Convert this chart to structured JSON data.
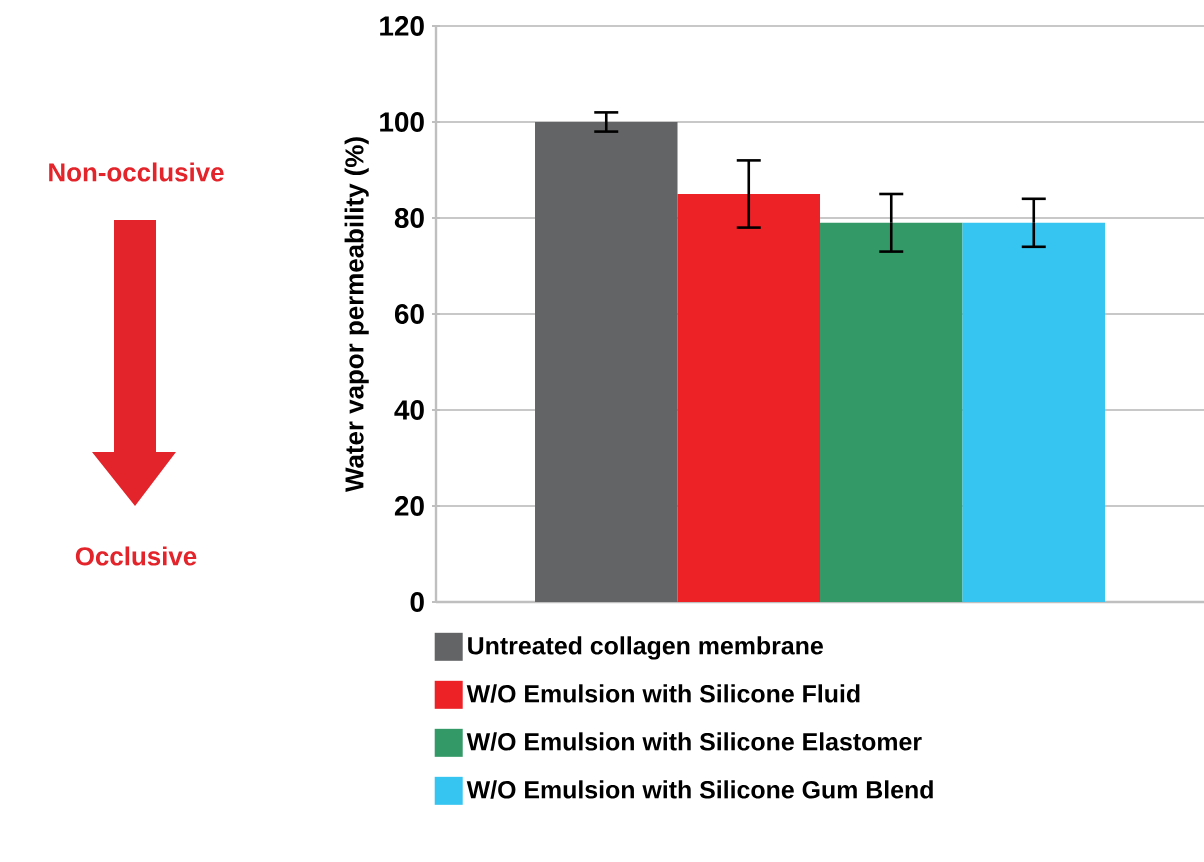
{
  "chart_data": {
    "type": "bar",
    "ylabel": "Water vapor permeability (%)",
    "categories": [
      null
    ],
    "series": [
      {
        "name": "Untreated collagen membrane",
        "color": "#636466",
        "values": [
          100
        ],
        "errors": [
          2
        ]
      },
      {
        "name": "W/O Emulsion with Silicone Fluid",
        "color": "#ec2227",
        "values": [
          85
        ],
        "errors": [
          7
        ]
      },
      {
        "name": "W/O Emulsion with Silicone Elastomer",
        "color": "#339966",
        "values": [
          79
        ],
        "errors": [
          6
        ]
      },
      {
        "name": "W/O Emulsion with Silicone Gum Blend",
        "color": "#36c5f0",
        "values": [
          79
        ],
        "errors": [
          5
        ]
      }
    ],
    "ylim": [
      0,
      120
    ],
    "yticks": [
      0,
      20,
      40,
      60,
      80,
      100,
      120
    ],
    "grid": "y",
    "legend": "bottom",
    "annotations": [
      "Non-occlusive",
      "Occlusive"
    ]
  }
}
